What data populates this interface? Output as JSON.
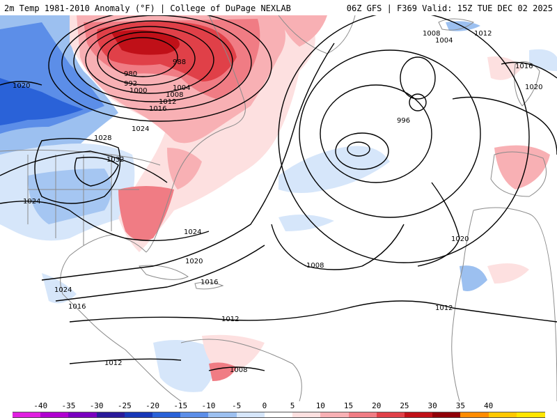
{
  "header": {
    "left_title": "2m Temp 1981-2010 Anomaly (°F) | College of DuPage NEXLAB",
    "right_title": "06Z GFS | F369 Valid: 15Z TUE DEC 02 2025"
  },
  "legend": {
    "ticks": [
      "-40",
      "-35",
      "-30",
      "-25",
      "-20",
      "-15",
      "-10",
      "-5",
      "0",
      "5",
      "10",
      "15",
      "20",
      "25",
      "30",
      "35",
      "40"
    ],
    "colors": [
      "#e020e0",
      "#b000d0",
      "#7a00c0",
      "#2a1a9a",
      "#1838b8",
      "#2a62d8",
      "#5c8ee8",
      "#9cc0f0",
      "#d6e6fa",
      "#ffffff",
      "#fde0e0",
      "#f8b0b4",
      "#f07c84",
      "#e04048",
      "#c01018",
      "#900008",
      "#ff8c00",
      "#ffc800",
      "#ffe600"
    ]
  },
  "map": {
    "colors": {
      "ocean": "#ffffff",
      "land_lines": "#8a8a8a",
      "isobar": "#000000",
      "warm_light": "#fde0e0",
      "warm_mid": "#f8b0b4",
      "warm_strong": "#f07c84",
      "warm_deep": "#e04048",
      "warm_max": "#c01018",
      "cold_light": "#d6e6fa",
      "cold_mid": "#9cc0f0",
      "cold_strong": "#5c8ee8",
      "cold_deep": "#2a62d8",
      "cold_max": "#1838b8"
    },
    "isobar_labels": [
      "1008",
      "1012",
      "1004",
      "1016",
      "1020",
      "980",
      "988",
      "992",
      "1000",
      "1004",
      "1008",
      "1012",
      "1016",
      "1020",
      "1024",
      "1028",
      "1032",
      "996",
      "1024",
      "1024",
      "1020",
      "1020",
      "1008",
      "1024",
      "1016",
      "1012",
      "1016",
      "1012",
      "1012",
      "1008"
    ]
  }
}
